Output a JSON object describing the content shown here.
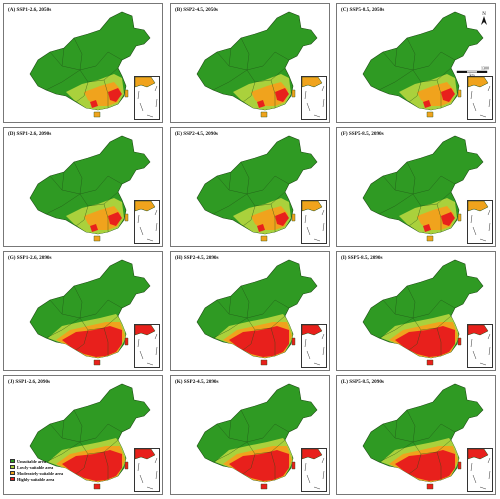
{
  "colors": {
    "unsuitable": "#2f9a23",
    "lowly": "#aad13c",
    "moderately": "#f0a31d",
    "highly": "#e8201c",
    "border": "#1e4d15"
  },
  "legend": [
    {
      "label": "Unsuitable area",
      "color": "#2f9a23"
    },
    {
      "label": "Lowly-suitable area",
      "color": "#aad13c"
    },
    {
      "label": "Moderately-suitable area",
      "color": "#f0a31d"
    },
    {
      "label": "Highly-suitable area",
      "color": "#e8201c"
    }
  ],
  "north_label": "N",
  "scale_label": "1300",
  "scale_unit": "km",
  "panels": [
    {
      "title": "(A) SSP1-2.6, 2050s",
      "level": 1
    },
    {
      "title": "(B)  SSP2-4.5, 2050s",
      "level": 1
    },
    {
      "title": "(C) SSP5-8.5, 2050s",
      "level": 1
    },
    {
      "title": "(D) SSP1-2.6, 2090s",
      "level": 1
    },
    {
      "title": "(E) SSP2-4.5, 2090s",
      "level": 1
    },
    {
      "title": "(F) SSP5-8.5, 2090s",
      "level": 1
    },
    {
      "title": "(G) SSP1-2.6, 2090s",
      "level": 2
    },
    {
      "title": "(H) SSP2-4.5, 2090s",
      "level": 2
    },
    {
      "title": "(I) SSP5-8.5, 2090s",
      "level": 2
    },
    {
      "title": "(J) SSP1-2.6, 2090s",
      "level": 2
    },
    {
      "title": "(K) SSP2-4.5, 2090s",
      "level": 2
    },
    {
      "title": "(L) SSP5-8.5, 2090s",
      "level": 2
    }
  ]
}
